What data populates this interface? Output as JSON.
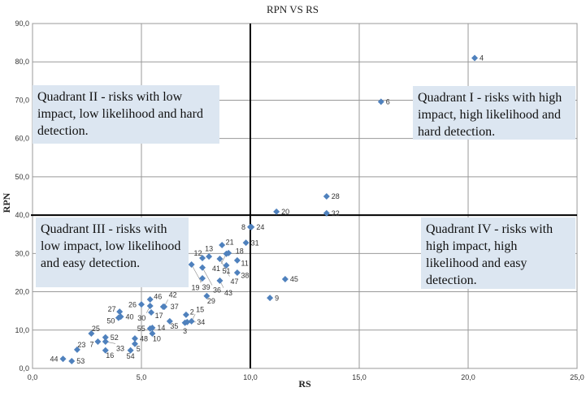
{
  "chart_data": {
    "type": "scatter",
    "title": "RPN VS RS",
    "xlabel": "RS",
    "ylabel": "RPN",
    "xlim": [
      0,
      25
    ],
    "ylim": [
      0,
      90
    ],
    "xticks": [
      "0,0",
      "5,0",
      "10,0",
      "15,0",
      "20,0",
      "25,0"
    ],
    "yticks": [
      "0,0",
      "10,0",
      "20,0",
      "30,0",
      "40,0",
      "50,0",
      "60,0",
      "70,0",
      "80,0",
      "90,0"
    ],
    "grid": "horizontal",
    "marker_color": "#4f81bd",
    "threshold_lines": {
      "x": 10,
      "y": 40
    },
    "points": [
      {
        "label": "4",
        "x": 20.3,
        "y": 81.0
      },
      {
        "label": "6",
        "x": 16.0,
        "y": 69.6
      },
      {
        "label": "28",
        "x": 13.5,
        "y": 44.9
      },
      {
        "label": "32",
        "x": 13.5,
        "y": 40.5
      },
      {
        "label": "20",
        "x": 11.2,
        "y": 40.9
      },
      {
        "label": "8",
        "x": 10.0,
        "y": 36.9
      },
      {
        "label": "24",
        "x": 10.05,
        "y": 36.9
      },
      {
        "label": "31",
        "x": 9.8,
        "y": 32.8
      },
      {
        "label": "21",
        "x": 8.7,
        "y": 32.2
      },
      {
        "label": "13",
        "x": 8.1,
        "y": 29.2
      },
      {
        "label": "12",
        "x": 7.8,
        "y": 28.8
      },
      {
        "label": "18",
        "x": 9.0,
        "y": 30.1
      },
      {
        "label": "41",
        "x": 8.9,
        "y": 29.9
      },
      {
        "label": "47",
        "x": 8.6,
        "y": 28.6
      },
      {
        "label": "11",
        "x": 9.4,
        "y": 28.2
      },
      {
        "label": "39",
        "x": 7.3,
        "y": 27.1
      },
      {
        "label": "36",
        "x": 7.8,
        "y": 26.3
      },
      {
        "label": "51",
        "x": 8.9,
        "y": 26.9
      },
      {
        "label": "38",
        "x": 9.4,
        "y": 25.0
      },
      {
        "label": "19",
        "x": 7.8,
        "y": 23.5
      },
      {
        "label": "43",
        "x": 8.6,
        "y": 22.9
      },
      {
        "label": "45",
        "x": 11.6,
        "y": 23.3
      },
      {
        "label": "29",
        "x": 8.0,
        "y": 18.9
      },
      {
        "label": "9",
        "x": 10.9,
        "y": 18.4
      },
      {
        "label": "46",
        "x": 5.4,
        "y": 18.0
      },
      {
        "label": "26",
        "x": 5.0,
        "y": 16.7
      },
      {
        "label": "30",
        "x": 5.4,
        "y": 16.3
      },
      {
        "label": "37",
        "x": 6.0,
        "y": 16.1
      },
      {
        "label": "42",
        "x": 6.05,
        "y": 16.1
      },
      {
        "label": "17",
        "x": 5.45,
        "y": 14.6
      },
      {
        "label": "2",
        "x": 7.05,
        "y": 14.0
      },
      {
        "label": "35",
        "x": 6.3,
        "y": 12.3
      },
      {
        "label": "3",
        "x": 7.0,
        "y": 11.9
      },
      {
        "label": "34",
        "x": 7.1,
        "y": 12.1
      },
      {
        "label": "15",
        "x": 7.3,
        "y": 12.3
      },
      {
        "label": "27",
        "x": 4.0,
        "y": 14.8
      },
      {
        "label": "50",
        "x": 3.95,
        "y": 13.2
      },
      {
        "label": "40",
        "x": 4.05,
        "y": 13.5
      },
      {
        "label": "55",
        "x": 5.4,
        "y": 10.4
      },
      {
        "label": "14",
        "x": 5.5,
        "y": 10.6
      },
      {
        "label": "10",
        "x": 5.5,
        "y": 9.1
      },
      {
        "label": "25",
        "x": 2.7,
        "y": 9.1
      },
      {
        "label": "52",
        "x": 3.35,
        "y": 8.1
      },
      {
        "label": "7",
        "x": 3.0,
        "y": 7.0
      },
      {
        "label": "33",
        "x": 3.35,
        "y": 7.0
      },
      {
        "label": "48",
        "x": 4.7,
        "y": 7.8
      },
      {
        "label": "5",
        "x": 4.7,
        "y": 6.4
      },
      {
        "label": "23",
        "x": 2.05,
        "y": 4.9
      },
      {
        "label": "16",
        "x": 3.35,
        "y": 4.7
      },
      {
        "label": "54",
        "x": 4.5,
        "y": 4.7
      },
      {
        "label": "44",
        "x": 1.4,
        "y": 2.5
      },
      {
        "label": "53",
        "x": 1.8,
        "y": 1.9
      }
    ]
  },
  "quadrants": {
    "q1": "Quadrant I - risks with high impact, high likelihood and hard detection.",
    "q2": "Quadrant II - risks with low impact, low likelihood and hard detection.",
    "q3": "Quadrant III - risks with low impact, low likelihood and easy detection.",
    "q4": "Quadrant IV - risks with high impact, high likelihood and easy detection."
  }
}
